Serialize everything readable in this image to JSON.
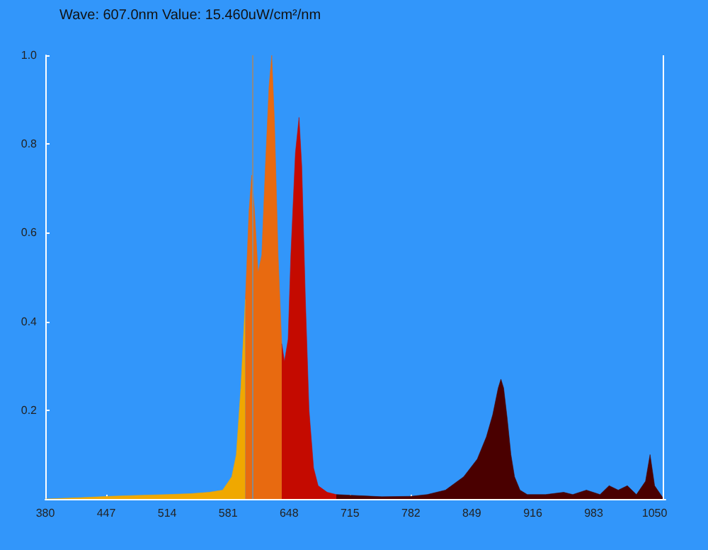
{
  "chart_data": {
    "type": "area",
    "annotations": [
      "Wave: 607.0nm Value: 15.460uW/cm²/nm"
    ],
    "xlim": [
      380,
      1062
    ],
    "xticks": [
      380,
      447,
      514,
      581,
      648,
      715,
      782,
      849,
      916,
      983,
      1050
    ],
    "ylim": [
      0,
      1
    ],
    "yticks": [
      0.2,
      0.4,
      0.6,
      0.8,
      {
        "value": 1,
        "label": "1.0"
      }
    ],
    "grid": false,
    "marker": "none",
    "series": [
      {
        "color": "#f0a800",
        "x": [
          380,
          420,
          450,
          480,
          514,
          540,
          560,
          575,
          585,
          590,
          595,
          600
        ],
        "values": [
          0,
          0.003,
          0.006,
          0.008,
          0.01,
          0.012,
          0.015,
          0.02,
          0.05,
          0.1,
          0.25,
          0.45
        ]
      },
      {
        "color": "#e86a10",
        "x": [
          600,
          604,
          607,
          610,
          614,
          618,
          622,
          626,
          629,
          632,
          636,
          640
        ],
        "values": [
          0.45,
          0.65,
          0.73,
          0.65,
          0.51,
          0.55,
          0.75,
          0.93,
          1.0,
          0.85,
          0.55,
          0.35
        ]
      },
      {
        "color": "#c40a00",
        "x": [
          640,
          643,
          647,
          650,
          655,
          659,
          662,
          666,
          670,
          675,
          680,
          690,
          700
        ],
        "values": [
          0.35,
          0.31,
          0.36,
          0.55,
          0.78,
          0.86,
          0.75,
          0.45,
          0.2,
          0.07,
          0.03,
          0.015,
          0.01
        ]
      },
      {
        "color": "#4a0000",
        "x": [
          700,
          750,
          782,
          800,
          820,
          840,
          855,
          865,
          872,
          878,
          881,
          884,
          888,
          892,
          896,
          902,
          910,
          930,
          950,
          960,
          975,
          990,
          1000,
          1010,
          1020,
          1030,
          1040,
          1045,
          1050,
          1060
        ],
        "values": [
          0.01,
          0.005,
          0.006,
          0.01,
          0.02,
          0.05,
          0.09,
          0.14,
          0.19,
          0.25,
          0.27,
          0.25,
          0.18,
          0.1,
          0.05,
          0.02,
          0.01,
          0.01,
          0.015,
          0.01,
          0.02,
          0.01,
          0.03,
          0.02,
          0.03,
          0.01,
          0.04,
          0.1,
          0.03,
          0
        ]
      }
    ],
    "ref_lines": [
      {
        "axis": "x",
        "value": 607,
        "color": "#8a8a8a"
      },
      {
        "axis": "x",
        "value": 1060,
        "color": "#ffffff"
      }
    ]
  }
}
